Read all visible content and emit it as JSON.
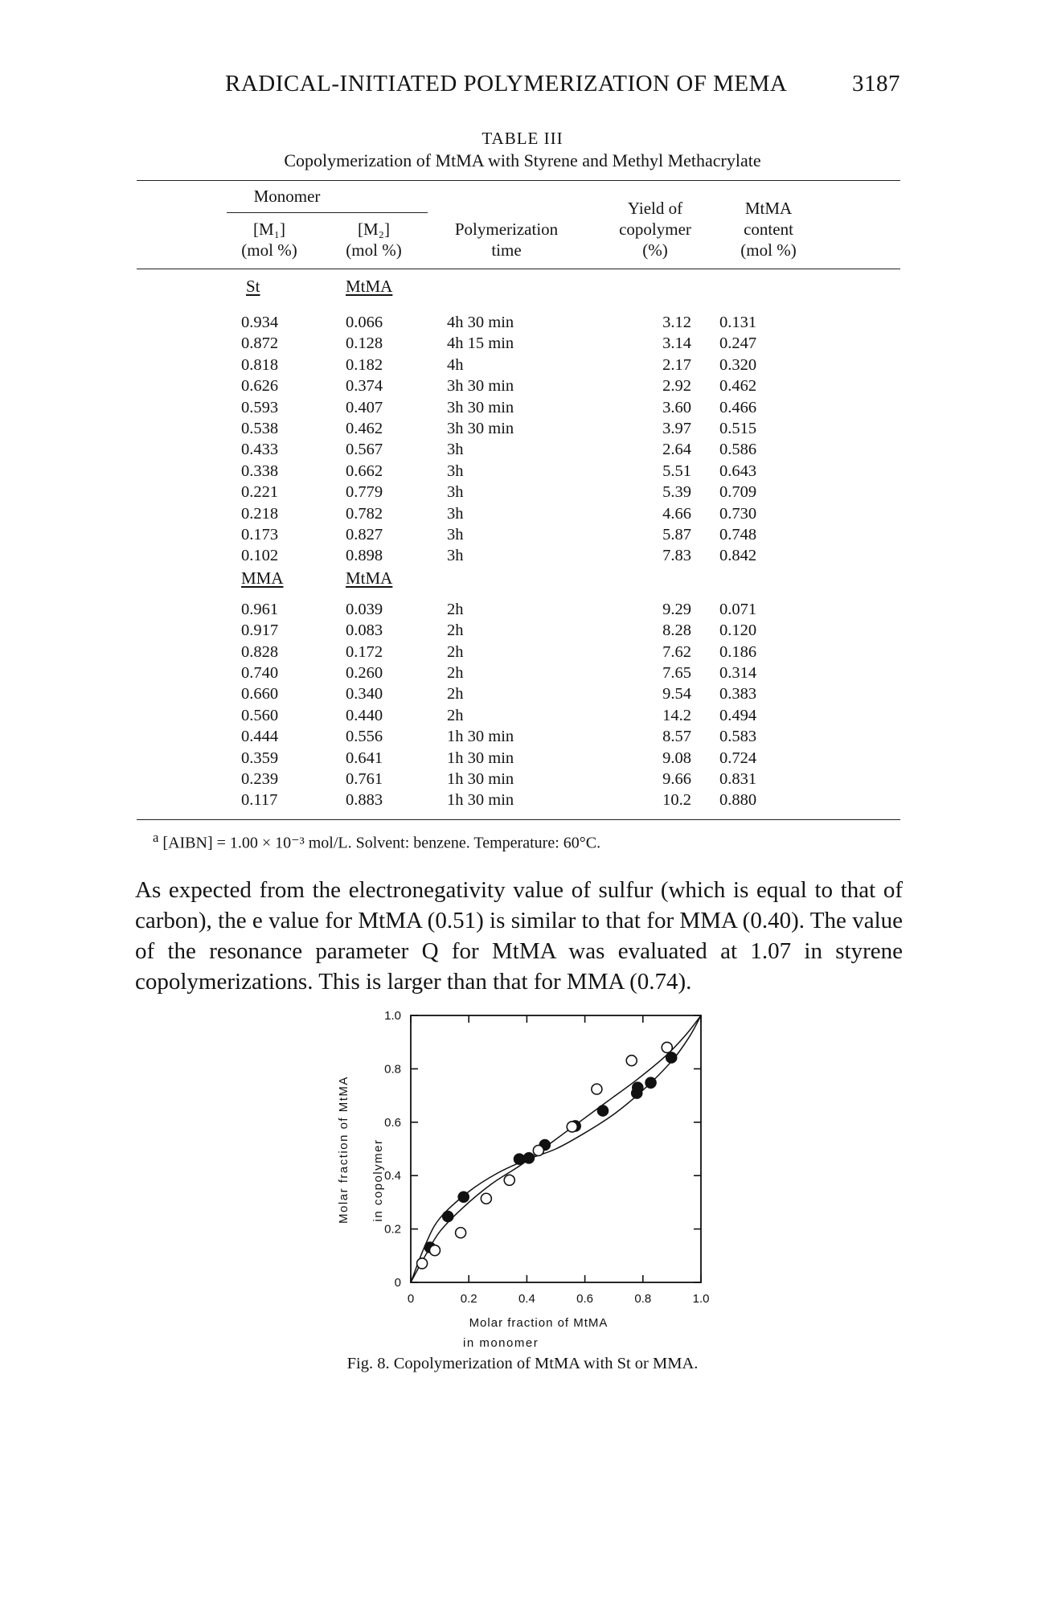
{
  "running_head": {
    "title": "RADICAL-INITIATED POLYMERIZATION OF MEMA",
    "page_number": "3187"
  },
  "table": {
    "label": "TABLE III",
    "caption": "Copolymerization of MtMA with Styrene and Methyl Methacrylate",
    "footnote_mark": "a",
    "headers": {
      "monomer": "Monomer",
      "m1": "[M₁]",
      "m1_unit": "(mol %)",
      "m2": "[M₂]",
      "m2_unit": "(mol %)",
      "time_line1": "Polymerization",
      "time_line2": "time",
      "yield_line1": "Yield of",
      "yield_line2": "copolymer",
      "yield_line3": "(%)",
      "content_line1": "MtMA",
      "content_line2": "content",
      "content_line3": "(mol %)"
    },
    "groups": [
      {
        "m1_label": "St",
        "m2_label": "MtMA",
        "rows": [
          [
            "0.934",
            "0.066",
            "4h 30 min",
            "3.12",
            "0.131"
          ],
          [
            "0.872",
            "0.128",
            "4h 15 min",
            "3.14",
            "0.247"
          ],
          [
            "0.818",
            "0.182",
            "4h",
            "2.17",
            "0.320"
          ],
          [
            "0.626",
            "0.374",
            "3h 30 min",
            "2.92",
            "0.462"
          ],
          [
            "0.593",
            "0.407",
            "3h 30 min",
            "3.60",
            "0.466"
          ],
          [
            "0.538",
            "0.462",
            "3h 30 min",
            "3.97",
            "0.515"
          ],
          [
            "0.433",
            "0.567",
            "3h",
            "2.64",
            "0.586"
          ],
          [
            "0.338",
            "0.662",
            "3h",
            "5.51",
            "0.643"
          ],
          [
            "0.221",
            "0.779",
            "3h",
            "5.39",
            "0.709"
          ],
          [
            "0.218",
            "0.782",
            "3h",
            "4.66",
            "0.730"
          ],
          [
            "0.173",
            "0.827",
            "3h",
            "5.87",
            "0.748"
          ],
          [
            "0.102",
            "0.898",
            "3h",
            "7.83",
            "0.842"
          ]
        ]
      },
      {
        "m1_label": "MMA",
        "m2_label": "MtMA",
        "rows": [
          [
            "0.961",
            "0.039",
            "2h",
            "9.29",
            "0.071"
          ],
          [
            "0.917",
            "0.083",
            "2h",
            "8.28",
            "0.120"
          ],
          [
            "0.828",
            "0.172",
            "2h",
            "7.62",
            "0.186"
          ],
          [
            "0.740",
            "0.260",
            "2h",
            "7.65",
            "0.314"
          ],
          [
            "0.660",
            "0.340",
            "2h",
            "9.54",
            "0.383"
          ],
          [
            "0.560",
            "0.440",
            "2h",
            "14.2",
            "0.494"
          ],
          [
            "0.444",
            "0.556",
            "1h 30 min",
            "8.57",
            "0.583"
          ],
          [
            "0.359",
            "0.641",
            "1h 30 min",
            "9.08",
            "0.724"
          ],
          [
            "0.239",
            "0.761",
            "1h 30 min",
            "9.66",
            "0.831"
          ],
          [
            "0.117",
            "0.883",
            "1h 30 min",
            "10.2",
            "0.880"
          ]
        ]
      }
    ],
    "footnote": "[AIBN] = 1.00 × 10⁻³ mol/L. Solvent: benzene. Temperature: 60°C."
  },
  "body_paragraph": "As expected from the electronegativity value of sulfur (which is equal to that of carbon), the e value for MtMA (0.51) is similar to that for MMA (0.40). The value of the resonance parameter Q for MtMA was evaluated at 1.07 in styrene copolymerizations. This is larger than that for MMA (0.74).",
  "figure_caption": "Fig. 8.  Copolymerization of MtMA with St or MMA.",
  "chart_data": {
    "type": "scatter",
    "xlabel_line1": "Molar fraction of MtMA",
    "xlabel_line2": "in monomer",
    "ylabel_line1": "Molar fraction of MtMA",
    "ylabel_line2": "in copolymer",
    "xlim": [
      0,
      1.0
    ],
    "ylim": [
      0,
      1.0
    ],
    "x_ticks": [
      "0",
      "0.2",
      "0.4",
      "0.6",
      "0.8",
      "1.0"
    ],
    "y_ticks": [
      "0",
      "0.2",
      "0.4",
      "0.6",
      "0.8",
      "1.0"
    ],
    "grid": false,
    "series": [
      {
        "marker": "filled-circle",
        "color": "#111111",
        "points": [
          [
            0.066,
            0.131
          ],
          [
            0.128,
            0.247
          ],
          [
            0.182,
            0.32
          ],
          [
            0.374,
            0.462
          ],
          [
            0.407,
            0.466
          ],
          [
            0.462,
            0.515
          ],
          [
            0.567,
            0.586
          ],
          [
            0.662,
            0.643
          ],
          [
            0.779,
            0.709
          ],
          [
            0.782,
            0.73
          ],
          [
            0.827,
            0.748
          ],
          [
            0.898,
            0.842
          ]
        ],
        "curve": [
          [
            0,
            0
          ],
          [
            0.05,
            0.1
          ],
          [
            0.1,
            0.19
          ],
          [
            0.18,
            0.28
          ],
          [
            0.28,
            0.37
          ],
          [
            0.38,
            0.44
          ],
          [
            0.48,
            0.52
          ],
          [
            0.58,
            0.6
          ],
          [
            0.68,
            0.68
          ],
          [
            0.78,
            0.76
          ],
          [
            0.88,
            0.85
          ],
          [
            0.95,
            0.93
          ],
          [
            1,
            1
          ]
        ]
      },
      {
        "marker": "open-circle",
        "color": "#111111",
        "points": [
          [
            0.039,
            0.071
          ],
          [
            0.083,
            0.12
          ],
          [
            0.172,
            0.186
          ],
          [
            0.26,
            0.314
          ],
          [
            0.34,
            0.383
          ],
          [
            0.44,
            0.494
          ],
          [
            0.556,
            0.583
          ],
          [
            0.641,
            0.724
          ],
          [
            0.761,
            0.831
          ],
          [
            0.883,
            0.88
          ]
        ],
        "curve": [
          [
            0,
            0
          ],
          [
            0.05,
            0.14
          ],
          [
            0.1,
            0.24
          ],
          [
            0.2,
            0.34
          ],
          [
            0.3,
            0.41
          ],
          [
            0.4,
            0.46
          ],
          [
            0.5,
            0.5
          ],
          [
            0.6,
            0.56
          ],
          [
            0.7,
            0.63
          ],
          [
            0.8,
            0.72
          ],
          [
            0.9,
            0.83
          ],
          [
            0.96,
            0.92
          ],
          [
            1,
            1
          ]
        ]
      }
    ]
  }
}
